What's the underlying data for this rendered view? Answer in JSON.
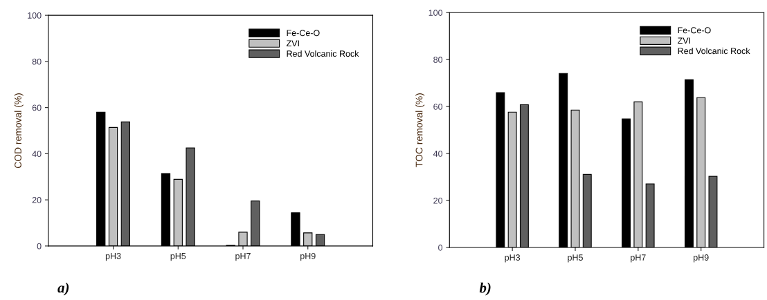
{
  "chart_data": [
    {
      "type": "bar",
      "ylabel": "COD removal (%)",
      "categories": [
        "pH3",
        "pH5",
        "pH7",
        "pH9"
      ],
      "ylim": [
        0,
        100
      ],
      "yticks": [
        0,
        20,
        40,
        60,
        80,
        100
      ],
      "grid": false,
      "legend": "top right",
      "annotations": [
        "a)"
      ],
      "series": [
        {
          "name": "Fe-Ce-O",
          "color": "#000000",
          "values": [
            58.0,
            31.4,
            0.3,
            14.4
          ]
        },
        {
          "name": "ZVI",
          "color": "#c0c0c0",
          "values": [
            51.4,
            28.9,
            6.0,
            5.7
          ]
        },
        {
          "name": "Red Volcanic Rock",
          "color": "#606060",
          "values": [
            53.8,
            42.5,
            19.5,
            5.0
          ]
        }
      ]
    },
    {
      "type": "bar",
      "ylabel": "TOC removal (%)",
      "categories": [
        "pH3",
        "pH5",
        "pH7",
        "pH9"
      ],
      "ylim": [
        0,
        100
      ],
      "yticks": [
        0,
        20,
        40,
        60,
        80,
        100
      ],
      "grid": false,
      "legend": "top right",
      "annotations": [
        "b)"
      ],
      "series": [
        {
          "name": "Fe-Ce-O",
          "color": "#000000",
          "values": [
            65.9,
            74.1,
            54.7,
            71.4
          ]
        },
        {
          "name": "ZVI",
          "color": "#c0c0c0",
          "values": [
            57.6,
            58.5,
            62.0,
            63.8
          ]
        },
        {
          "name": "Red Volcanic Rock",
          "color": "#606060",
          "values": [
            60.8,
            31.1,
            27.1,
            30.3
          ]
        }
      ]
    }
  ]
}
